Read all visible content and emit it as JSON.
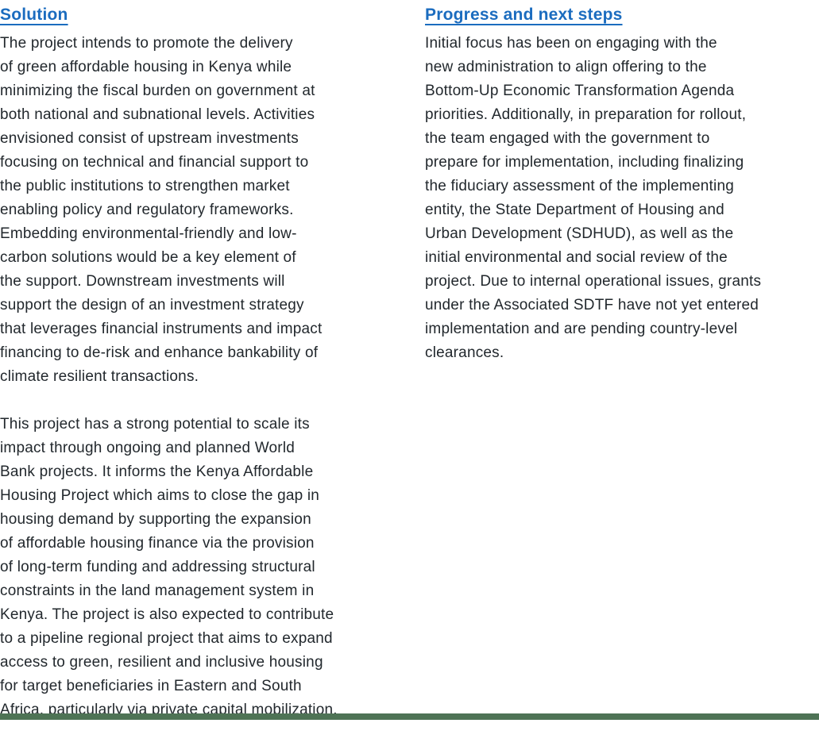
{
  "page": {
    "background_color": "#ffffff",
    "accent_blue": "#1b6cbf",
    "body_text_color": "#22282d",
    "footer_band_color": "#4e7355"
  },
  "left_column": {
    "heading": "Solution",
    "paragraph1": "The project intends to promote the delivery\nof green affordable housing in Kenya while\nminimizing the fiscal burden on government at\nboth national and subnational levels. Activities\nenvisioned consist of upstream investments\nfocusing on technical and financial support to\nthe public institutions to strengthen market\nenabling policy and regulatory frameworks.\nEmbedding environmental-friendly and low-\ncarbon solutions would be a key element of\nthe support. Downstream investments will\nsupport the design of an investment strategy\nthat leverages financial instruments and impact\nfinancing to de-risk and enhance bankability of\nclimate resilient transactions.",
    "paragraph2": "This project has a strong potential to scale its\nimpact through ongoing and planned World\nBank projects. It informs the Kenya Affordable\nHousing Project which aims to close the gap in\nhousing demand by supporting the expansion\nof affordable housing finance via the provision\nof long-term funding and addressing structural\nconstraints in the land management system in\nKenya. The project is also expected to contribute\nto a pipeline regional project that aims to expand\naccess to green, resilient and inclusive housing\nfor target beneficiaries in Eastern and South\nAfrica, particularly via private capital mobilization."
  },
  "right_column": {
    "heading": "Progress and next steps",
    "paragraph1": "Initial focus has been on engaging with the\nnew administration to align offering to the\nBottom-Up Economic Transformation Agenda\npriorities. Additionally, in preparation for rollout,\nthe team engaged with the government to\nprepare for implementation, including finalizing\nthe fiduciary assessment of the implementing\nentity, the State Department of Housing and\nUrban Development (SDHUD), as well as the\ninitial environmental and social review of the\nproject. Due to internal operational issues, grants\nunder the Associated SDTF have not yet entered\nimplementation and are pending country-level\nclearances."
  }
}
